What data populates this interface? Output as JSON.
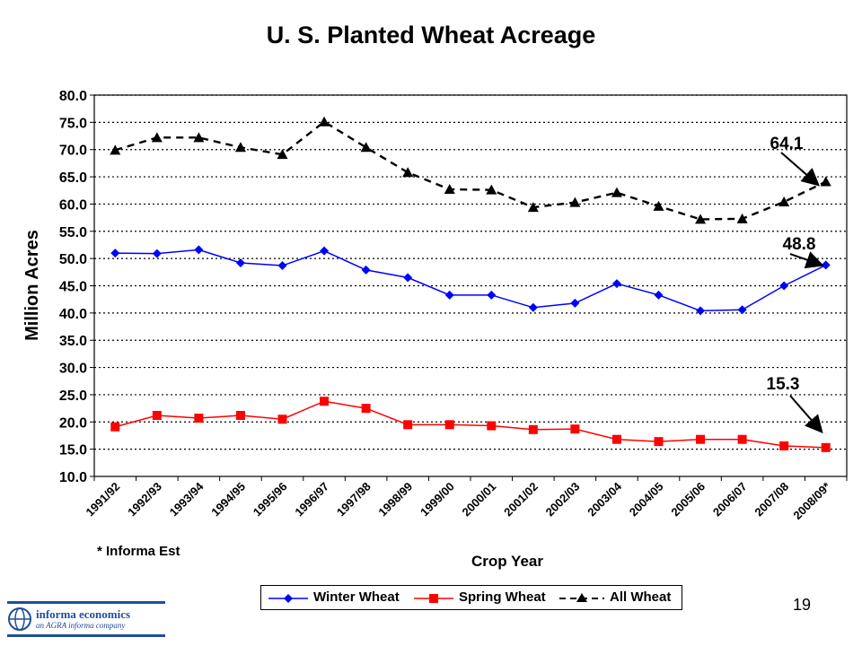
{
  "page_number": "19",
  "footnote": "* Informa Est",
  "logo": {
    "name": "informa economics",
    "tagline": "an AGRA informa company"
  },
  "chart_data": {
    "type": "line",
    "title": "U. S. Planted Wheat Acreage",
    "xlabel": "Crop Year",
    "ylabel": "Million Acres",
    "ylim": [
      10.0,
      80.0
    ],
    "ytick_step": 5.0,
    "grid": "horizontal dotted",
    "legend_position": "bottom",
    "categories": [
      "1991/92",
      "1992/93",
      "1993/94",
      "1994/95",
      "1995/96",
      "1996/97",
      "1997/98",
      "1998/99",
      "1999/00",
      "2000/01",
      "2001/02",
      "2002/03",
      "2003/04",
      "2004/05",
      "2005/06",
      "2006/07",
      "2007/08",
      "2008/09*"
    ],
    "series": [
      {
        "name": "Winter Wheat",
        "color": "#0000ff",
        "marker": "diamond",
        "dash": "solid",
        "values": [
          51.0,
          50.9,
          51.6,
          49.2,
          48.7,
          51.4,
          47.9,
          46.5,
          43.3,
          43.3,
          41.0,
          41.8,
          45.4,
          43.3,
          40.4,
          40.6,
          45.0,
          48.8
        ]
      },
      {
        "name": "Spring Wheat",
        "color": "#ff0000",
        "marker": "square",
        "dash": "solid",
        "values": [
          19.1,
          21.2,
          20.7,
          21.2,
          20.5,
          23.8,
          22.5,
          19.5,
          19.5,
          19.3,
          18.6,
          18.7,
          16.8,
          16.4,
          16.8,
          16.8,
          15.6,
          15.3
        ]
      },
      {
        "name": "All Wheat",
        "color": "#000000",
        "marker": "triangle",
        "dash": "dashed",
        "values": [
          69.9,
          72.2,
          72.2,
          70.4,
          69.1,
          75.1,
          70.4,
          65.8,
          62.7,
          62.6,
          59.4,
          60.3,
          62.1,
          59.6,
          57.2,
          57.3,
          60.4,
          64.1
        ]
      }
    ],
    "annotations": [
      {
        "text": "64.1",
        "series": "All Wheat",
        "index": 17
      },
      {
        "text": "48.8",
        "series": "Winter Wheat",
        "index": 17
      },
      {
        "text": "15.3",
        "series": "Spring Wheat",
        "index": 17
      }
    ]
  }
}
